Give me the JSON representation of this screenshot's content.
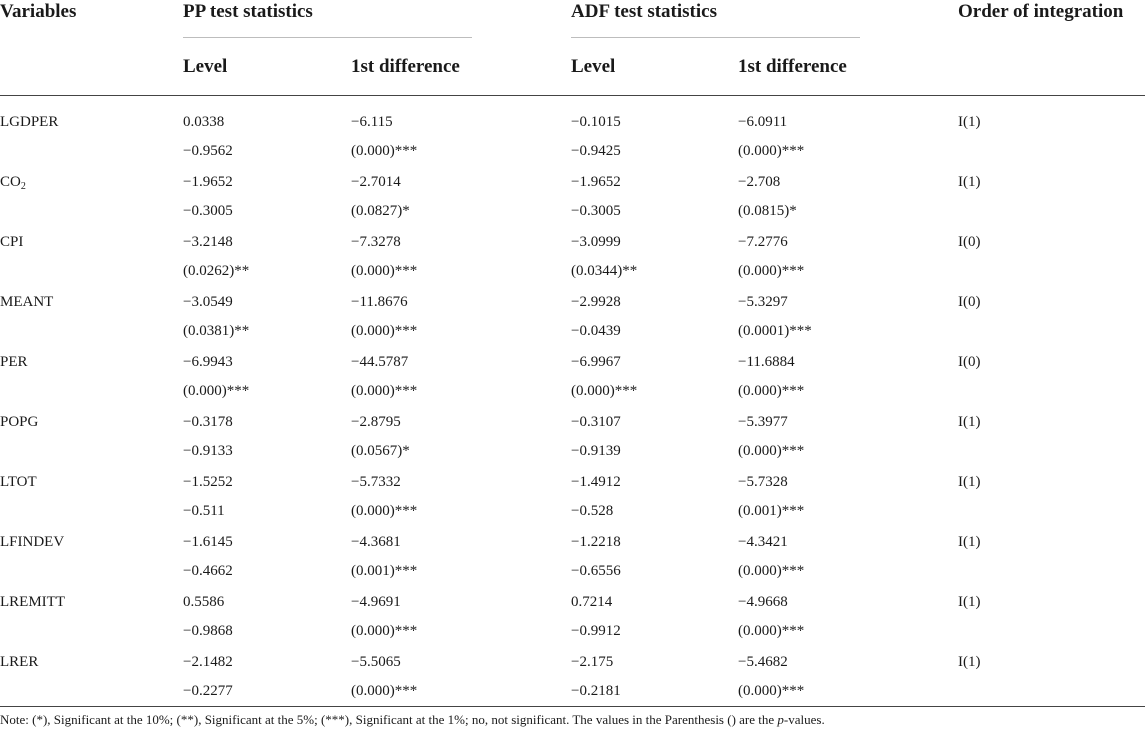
{
  "headers": {
    "variables": "Variables",
    "pp": "PP test statistics",
    "adf": "ADF test statistics",
    "order": "Order of integration",
    "level": "Level",
    "first_diff": "1st difference"
  },
  "rows": [
    {
      "var": "LGDPER",
      "sub": "",
      "pp_level": [
        "0.0338",
        "−0.9562"
      ],
      "pp_diff": [
        "−6.115",
        "(0.000)***"
      ],
      "adf_level": [
        "−0.1015",
        "−0.9425"
      ],
      "adf_diff": [
        "−6.0911",
        "(0.000)***"
      ],
      "order": "I(1)"
    },
    {
      "var": "CO",
      "sub": "2",
      "pp_level": [
        "−1.9652",
        "−0.3005"
      ],
      "pp_diff": [
        "−2.7014",
        "(0.0827)*"
      ],
      "adf_level": [
        "−1.9652",
        "−0.3005"
      ],
      "adf_diff": [
        "−2.708",
        "(0.0815)*"
      ],
      "order": "I(1)"
    },
    {
      "var": "CPI",
      "sub": "",
      "pp_level": [
        "−3.2148",
        "(0.0262)**"
      ],
      "pp_diff": [
        "−7.3278",
        "(0.000)***"
      ],
      "adf_level": [
        "−3.0999",
        "(0.0344)**"
      ],
      "adf_diff": [
        "−7.2776",
        "(0.000)***"
      ],
      "order": "I(0)"
    },
    {
      "var": "MEANT",
      "sub": "",
      "pp_level": [
        "−3.0549",
        "(0.0381)**"
      ],
      "pp_diff": [
        "−11.8676",
        "(0.000)***"
      ],
      "adf_level": [
        "−2.9928",
        "−0.0439"
      ],
      "adf_diff": [
        "−5.3297",
        "(0.0001)***"
      ],
      "order": "I(0)"
    },
    {
      "var": "PER",
      "sub": "",
      "pp_level": [
        "−6.9943",
        "(0.000)***"
      ],
      "pp_diff": [
        "−44.5787",
        "(0.000)***"
      ],
      "adf_level": [
        "−6.9967",
        "(0.000)***"
      ],
      "adf_diff": [
        "−11.6884",
        "(0.000)***"
      ],
      "order": "I(0)"
    },
    {
      "var": "POPG",
      "sub": "",
      "pp_level": [
        "−0.3178",
        "−0.9133"
      ],
      "pp_diff": [
        "−2.8795",
        "(0.0567)*"
      ],
      "adf_level": [
        "−0.3107",
        "−0.9139"
      ],
      "adf_diff": [
        "−5.3977",
        "(0.000)***"
      ],
      "order": "I(1)"
    },
    {
      "var": "LTOT",
      "sub": "",
      "pp_level": [
        "−1.5252",
        "−0.511"
      ],
      "pp_diff": [
        "−5.7332",
        "(0.000)***"
      ],
      "adf_level": [
        "−1.4912",
        "−0.528"
      ],
      "adf_diff": [
        "−5.7328",
        "(0.001)***"
      ],
      "order": "I(1)"
    },
    {
      "var": "LFINDEV",
      "sub": "",
      "pp_level": [
        "−1.6145",
        "−0.4662"
      ],
      "pp_diff": [
        "−4.3681",
        "(0.001)***"
      ],
      "adf_level": [
        "−1.2218",
        "−0.6556"
      ],
      "adf_diff": [
        "−4.3421",
        "(0.000)***"
      ],
      "order": "I(1)"
    },
    {
      "var": "LREMITT",
      "sub": "",
      "pp_level": [
        "0.5586",
        "−0.9868"
      ],
      "pp_diff": [
        "−4.9691",
        "(0.000)***"
      ],
      "adf_level": [
        "0.7214",
        "−0.9912"
      ],
      "adf_diff": [
        "−4.9668",
        "(0.000)***"
      ],
      "order": "I(1)"
    },
    {
      "var": "LRER",
      "sub": "",
      "pp_level": [
        "−2.1482",
        "−0.2277"
      ],
      "pp_diff": [
        "−5.5065",
        "(0.000)***"
      ],
      "adf_level": [
        "−2.175",
        "−0.2181"
      ],
      "adf_diff": [
        "−5.4682",
        "(0.000)***"
      ],
      "order": "I(1)"
    }
  ],
  "note": {
    "prefix": "Note: (*), Significant at the 10%; (**), Significant at the 5%; (***), Significant at the 1%; no, not significant. The values in the Parenthesis () are the ",
    "pvalue": "p",
    "suffix": "-values."
  }
}
